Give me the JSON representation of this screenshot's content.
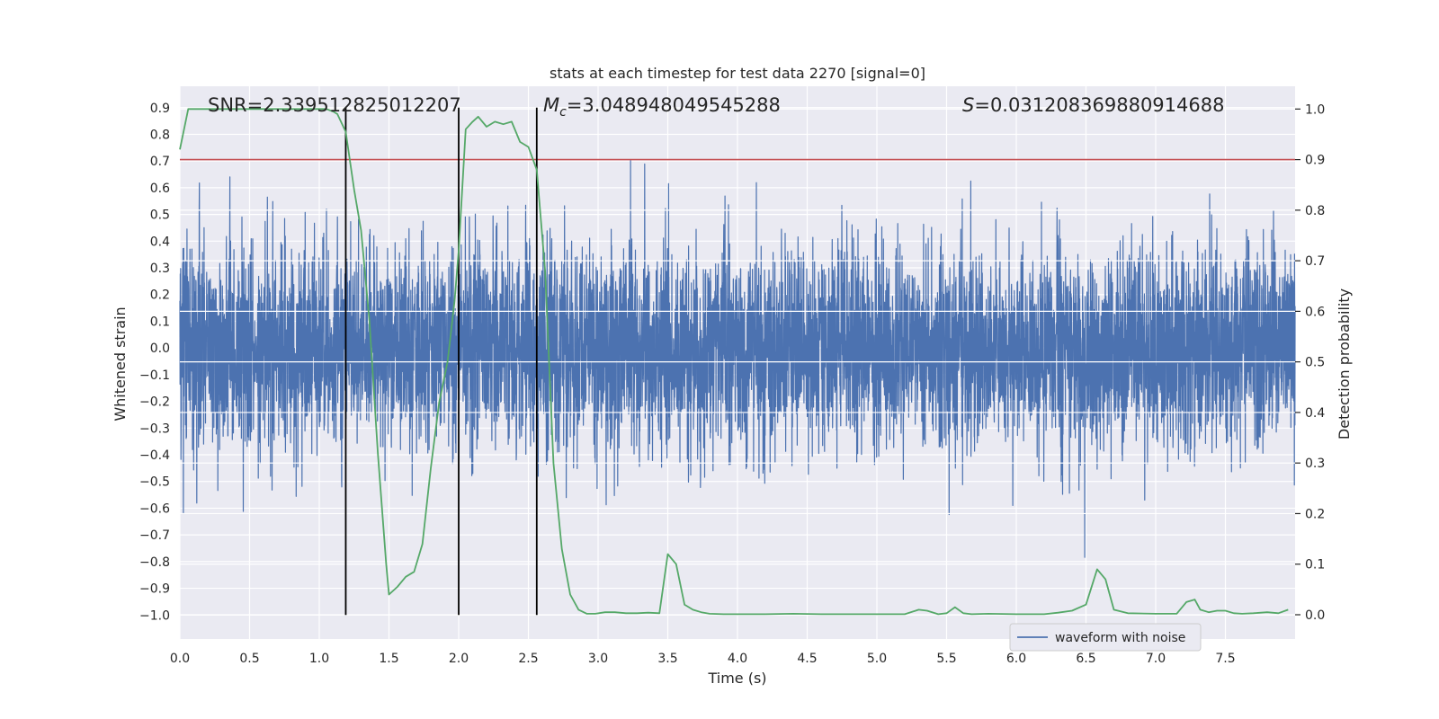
{
  "chart_data": {
    "type": "line",
    "title": "stats at each timestep for test data 2270 [signal=0]",
    "xlabel": "Time (s)",
    "ylabel": "Whitened strain",
    "y2label": "Detection probability",
    "xlim": [
      0.0,
      8.0
    ],
    "ylim": [
      -1.09,
      0.98
    ],
    "y2lim": [
      -0.048,
      1.045
    ],
    "xticks": [
      0.0,
      0.5,
      1.0,
      1.5,
      2.0,
      2.5,
      3.0,
      3.5,
      4.0,
      4.5,
      5.0,
      5.5,
      6.0,
      6.5,
      7.0,
      7.5
    ],
    "xtick_labels": [
      "0.0",
      "0.5",
      "1.0",
      "1.5",
      "2.0",
      "2.5",
      "3.0",
      "3.5",
      "4.0",
      "4.5",
      "5.0",
      "5.5",
      "6.0",
      "6.5",
      "7.0",
      "7.5"
    ],
    "yticks": [
      0.9,
      0.8,
      0.7,
      0.6,
      0.5,
      0.4,
      0.3,
      0.2,
      0.1,
      0.0,
      -0.1,
      -0.2,
      -0.3,
      -0.4,
      -0.5,
      -0.6,
      -0.7,
      -0.8,
      -0.9,
      -1.0
    ],
    "ytick_labels": [
      "0.9",
      "0.8",
      "0.7",
      "0.6",
      "0.5",
      "0.4",
      "0.3",
      "0.2",
      "0.1",
      "0.0",
      "−0.1",
      "−0.2",
      "−0.3",
      "−0.4",
      "−0.5",
      "−0.6",
      "−0.7",
      "−0.8",
      "−0.9",
      "−1.0"
    ],
    "y2ticks": [
      1.0,
      0.9,
      0.8,
      0.7,
      0.6,
      0.5,
      0.4,
      0.3,
      0.2,
      0.1,
      0.0
    ],
    "y2tick_labels": [
      "1.0",
      "0.9",
      "0.8",
      "0.7",
      "0.6",
      "0.5",
      "0.4",
      "0.3",
      "0.2",
      "0.1",
      "0.0"
    ],
    "annotations": {
      "snr": "SNR=2.339512825012207",
      "mc_symbol": "M",
      "mc_sub": "c",
      "mc_value": "=3.048948049545288",
      "s_symbol": "S",
      "s_value": "=0.031208369880914688"
    },
    "threshold": 0.9,
    "vlines": [
      1.19,
      2.0,
      2.56
    ],
    "legend": {
      "label": "waveform with noise",
      "position": "lower-right"
    },
    "waveform": {
      "name": "waveform with noise",
      "color": "#4c72b0",
      "description_range": [
        -1.0,
        0.9
      ],
      "seed": 2270
    },
    "probability": {
      "color": "#55a868",
      "x": [
        0.0,
        0.06,
        0.12,
        0.2,
        0.3,
        0.4,
        0.5,
        0.6,
        0.7,
        0.8,
        0.9,
        1.0,
        1.05,
        1.1,
        1.13,
        1.19,
        1.25,
        1.3,
        1.36,
        1.42,
        1.48,
        1.5,
        1.56,
        1.62,
        1.68,
        1.74,
        1.8,
        1.86,
        1.92,
        1.97,
        2.0,
        2.05,
        2.1,
        2.14,
        2.2,
        2.26,
        2.32,
        2.38,
        2.44,
        2.5,
        2.56,
        2.62,
        2.68,
        2.74,
        2.8,
        2.86,
        2.92,
        2.98,
        3.05,
        3.12,
        3.2,
        3.28,
        3.36,
        3.44,
        3.5,
        3.56,
        3.62,
        3.68,
        3.74,
        3.8,
        3.9,
        4.0,
        4.2,
        4.4,
        4.6,
        4.8,
        5.0,
        5.2,
        5.3,
        5.36,
        5.44,
        5.5,
        5.56,
        5.62,
        5.68,
        5.8,
        6.0,
        6.2,
        6.3,
        6.4,
        6.5,
        6.58,
        6.64,
        6.7,
        6.8,
        7.0,
        7.15,
        7.22,
        7.28,
        7.32,
        7.38,
        7.44,
        7.5,
        7.56,
        7.62,
        7.7,
        7.8,
        7.88,
        7.95
      ],
      "values": [
        0.92,
        1.0,
        1.0,
        1.0,
        1.0,
        1.0,
        1.0,
        1.0,
        1.0,
        1.0,
        1.0,
        1.0,
        1.0,
        0.995,
        0.99,
        0.955,
        0.84,
        0.76,
        0.58,
        0.32,
        0.1,
        0.04,
        0.055,
        0.075,
        0.085,
        0.14,
        0.29,
        0.42,
        0.5,
        0.62,
        0.72,
        0.96,
        0.975,
        0.985,
        0.965,
        0.975,
        0.97,
        0.975,
        0.935,
        0.925,
        0.88,
        0.68,
        0.3,
        0.13,
        0.04,
        0.01,
        0.002,
        0.002,
        0.005,
        0.005,
        0.003,
        0.003,
        0.004,
        0.003,
        0.12,
        0.1,
        0.02,
        0.01,
        0.005,
        0.002,
        0.001,
        0.001,
        0.001,
        0.002,
        0.001,
        0.001,
        0.001,
        0.001,
        0.01,
        0.008,
        0.001,
        0.003,
        0.015,
        0.003,
        0.001,
        0.002,
        0.001,
        0.001,
        0.004,
        0.008,
        0.02,
        0.09,
        0.07,
        0.01,
        0.003,
        0.002,
        0.002,
        0.025,
        0.03,
        0.01,
        0.005,
        0.008,
        0.008,
        0.003,
        0.002,
        0.003,
        0.005,
        0.003,
        0.01
      ]
    }
  }
}
